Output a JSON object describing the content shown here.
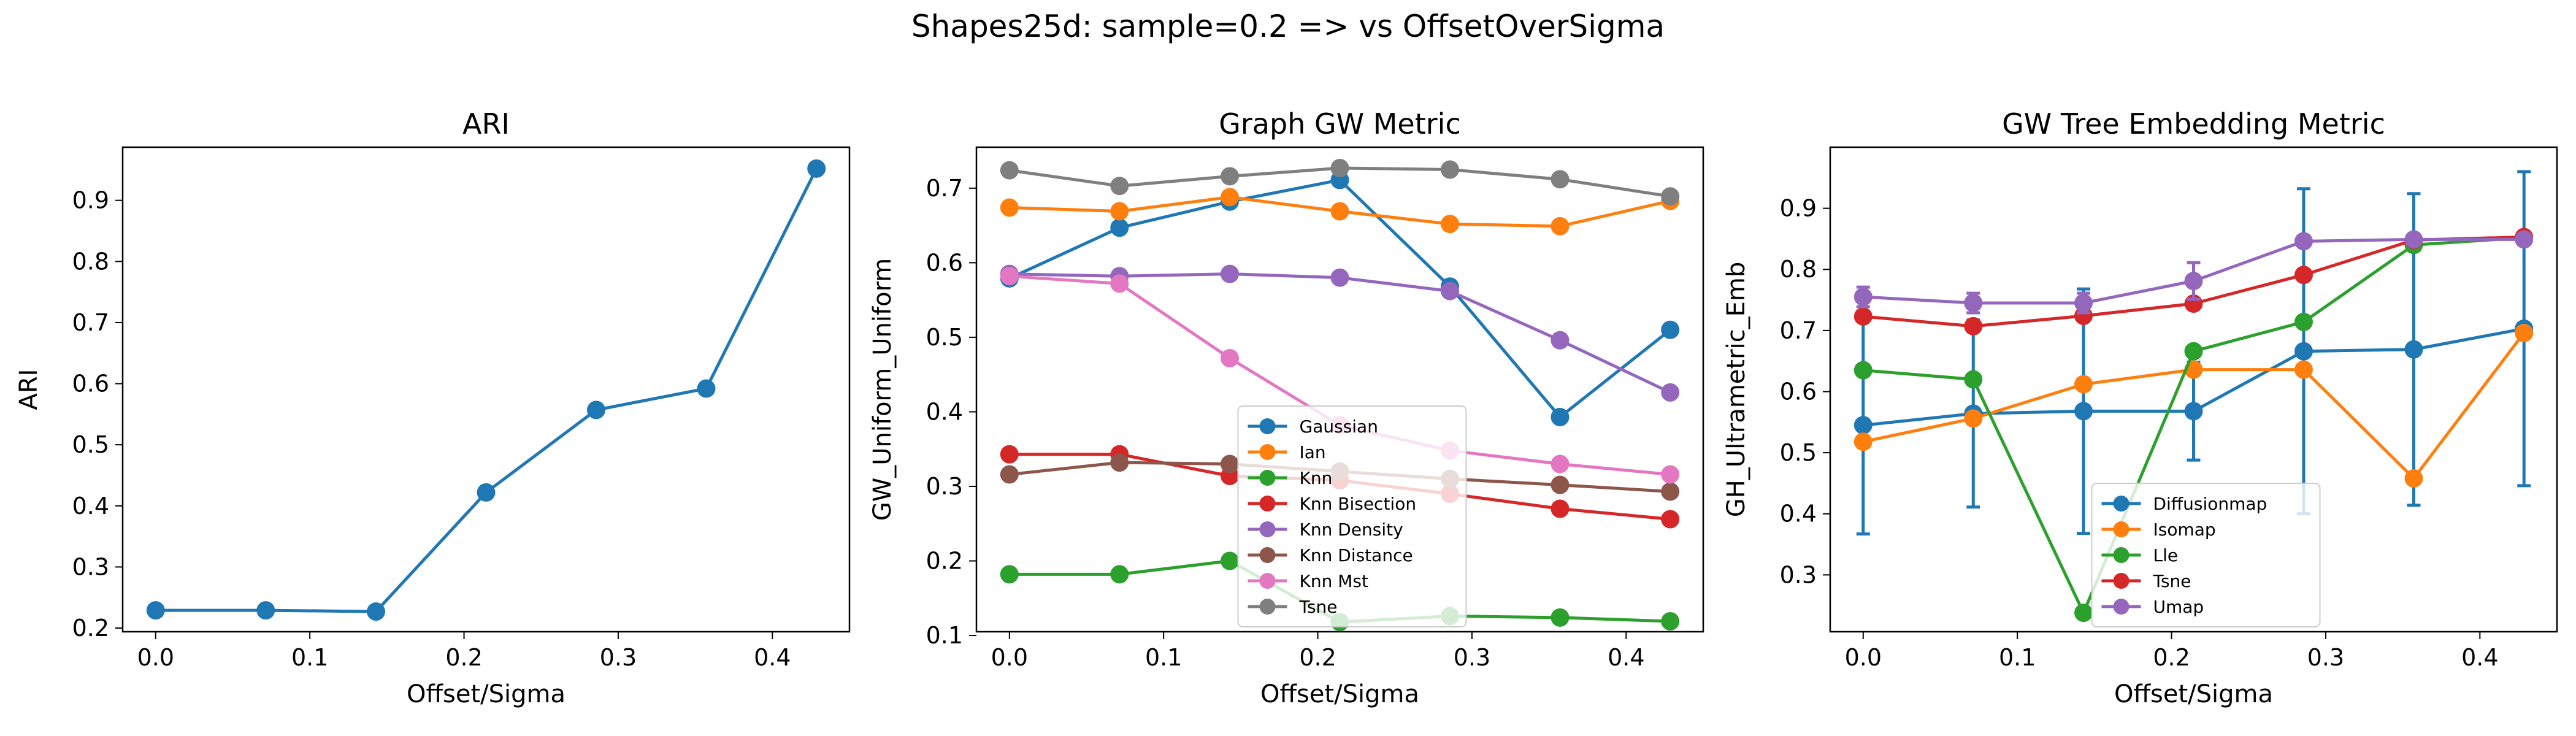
{
  "figure_title": "Shapes25d: sample=0.2 => vs OffsetOverSigma",
  "colors": {
    "blue": "#1f77b4",
    "orange": "#ff7f0e",
    "green": "#2ca02c",
    "red": "#d62728",
    "purple": "#9467bd",
    "brown": "#8c564b",
    "pink": "#e377c2",
    "gray": "#7f7f7f"
  },
  "chart_data": [
    {
      "type": "line",
      "title": "ARI",
      "xlabel": "Offset/Sigma",
      "ylabel": "ARI",
      "xlim": [
        -0.0214,
        0.45
      ],
      "ylim": [
        0.194,
        0.987
      ],
      "xticks": [
        0.0,
        0.1,
        0.2,
        0.3,
        0.4
      ],
      "xtick_labels": [
        "0.0",
        "0.1",
        "0.2",
        "0.3",
        "0.4"
      ],
      "yticks": [
        0.2,
        0.3,
        0.4,
        0.5,
        0.6,
        0.7,
        0.8,
        0.9
      ],
      "ytick_labels": [
        "0.2",
        "0.3",
        "0.4",
        "0.5",
        "0.6",
        "0.7",
        "0.8",
        "0.9"
      ],
      "x": [
        0.0,
        0.0714,
        0.1429,
        0.2143,
        0.2857,
        0.3571,
        0.4286
      ],
      "series": [
        {
          "name": "",
          "color": "#1f77b4",
          "values": [
            0.229,
            0.229,
            0.227,
            0.422,
            0.557,
            0.592,
            0.952
          ]
        }
      ],
      "legend": null
    },
    {
      "type": "line",
      "title": "Graph GW Metric",
      "xlabel": "Offset/Sigma",
      "ylabel": "GW_Uniform_Uniform",
      "xlim": [
        -0.0214,
        0.45
      ],
      "ylim": [
        0.105,
        0.755
      ],
      "xticks": [
        0.0,
        0.1,
        0.2,
        0.3,
        0.4
      ],
      "xtick_labels": [
        "0.0",
        "0.1",
        "0.2",
        "0.3",
        "0.4"
      ],
      "yticks": [
        0.1,
        0.2,
        0.3,
        0.4,
        0.5,
        0.6,
        0.7
      ],
      "ytick_labels": [
        "0.1",
        "0.2",
        "0.3",
        "0.4",
        "0.5",
        "0.6",
        "0.7"
      ],
      "x": [
        0.0,
        0.0714,
        0.1429,
        0.2143,
        0.2857,
        0.3571,
        0.4286
      ],
      "series": [
        {
          "name": "Gaussian",
          "color": "#1f77b4",
          "values": [
            0.579,
            0.647,
            0.682,
            0.711,
            0.568,
            0.393,
            0.51
          ]
        },
        {
          "name": "Ian",
          "color": "#ff7f0e",
          "values": [
            0.674,
            0.669,
            0.688,
            0.669,
            0.652,
            0.649,
            0.683
          ]
        },
        {
          "name": "Knn",
          "color": "#2ca02c",
          "values": [
            0.182,
            0.182,
            0.2,
            0.118,
            0.126,
            0.124,
            0.119
          ]
        },
        {
          "name": "Knn Bisection",
          "color": "#d62728",
          "values": [
            0.343,
            0.343,
            0.314,
            0.308,
            0.29,
            0.27,
            0.256
          ]
        },
        {
          "name": "Knn Density",
          "color": "#9467bd",
          "values": [
            0.585,
            0.582,
            0.585,
            0.58,
            0.562,
            0.496,
            0.426
          ]
        },
        {
          "name": "Knn Distance",
          "color": "#8c564b",
          "values": [
            0.316,
            0.332,
            0.33,
            0.32,
            0.31,
            0.302,
            0.293
          ]
        },
        {
          "name": "Knn Mst",
          "color": "#e377c2",
          "values": [
            0.582,
            0.572,
            0.472,
            0.382,
            0.348,
            0.33,
            0.316
          ]
        },
        {
          "name": "Tsne",
          "color": "#7f7f7f",
          "values": [
            0.724,
            0.703,
            0.716,
            0.727,
            0.725,
            0.712,
            0.689
          ]
        }
      ],
      "legend": "lower-center"
    },
    {
      "type": "line",
      "title": "GW Tree Embedding Metric",
      "xlabel": "Offset/Sigma",
      "ylabel": "GH_Ultrametric_Emb",
      "xlim": [
        -0.0214,
        0.45
      ],
      "ylim": [
        0.207,
        1.0
      ],
      "xticks": [
        0.0,
        0.1,
        0.2,
        0.3,
        0.4
      ],
      "xtick_labels": [
        "0.0",
        "0.1",
        "0.2",
        "0.3",
        "0.4"
      ],
      "yticks": [
        0.3,
        0.4,
        0.5,
        0.6,
        0.7,
        0.8,
        0.9
      ],
      "ytick_labels": [
        "0.3",
        "0.4",
        "0.5",
        "0.6",
        "0.7",
        "0.8",
        "0.9"
      ],
      "x": [
        0.0,
        0.0714,
        0.1429,
        0.2143,
        0.2857,
        0.3571,
        0.4286
      ],
      "series": [
        {
          "name": "Diffusionmap",
          "color": "#1f77b4",
          "values": [
            0.545,
            0.564,
            0.568,
            0.568,
            0.666,
            0.669,
            0.703
          ],
          "errors": [
            0.178,
            0.153,
            0.2,
            0.08,
            0.266,
            0.255,
            0.257
          ]
        },
        {
          "name": "Isomap",
          "color": "#ff7f0e",
          "values": [
            0.518,
            0.556,
            0.612,
            0.636,
            0.636,
            0.458,
            0.696
          ],
          "errors": null
        },
        {
          "name": "Lle",
          "color": "#2ca02c",
          "values": [
            0.635,
            0.62,
            0.238,
            0.666,
            0.714,
            0.84,
            0.852
          ],
          "errors": null
        },
        {
          "name": "Tsne",
          "color": "#d62728",
          "values": [
            0.723,
            0.707,
            0.724,
            0.744,
            0.791,
            0.848,
            0.853
          ],
          "errors": null
        },
        {
          "name": "Umap",
          "color": "#9467bd",
          "values": [
            0.755,
            0.745,
            0.745,
            0.781,
            0.846,
            0.849,
            0.849
          ],
          "errors": [
            0.016,
            0.016,
            0.016,
            0.03,
            0.0,
            0.0,
            0.0
          ]
        }
      ],
      "legend": "lower-center"
    }
  ]
}
